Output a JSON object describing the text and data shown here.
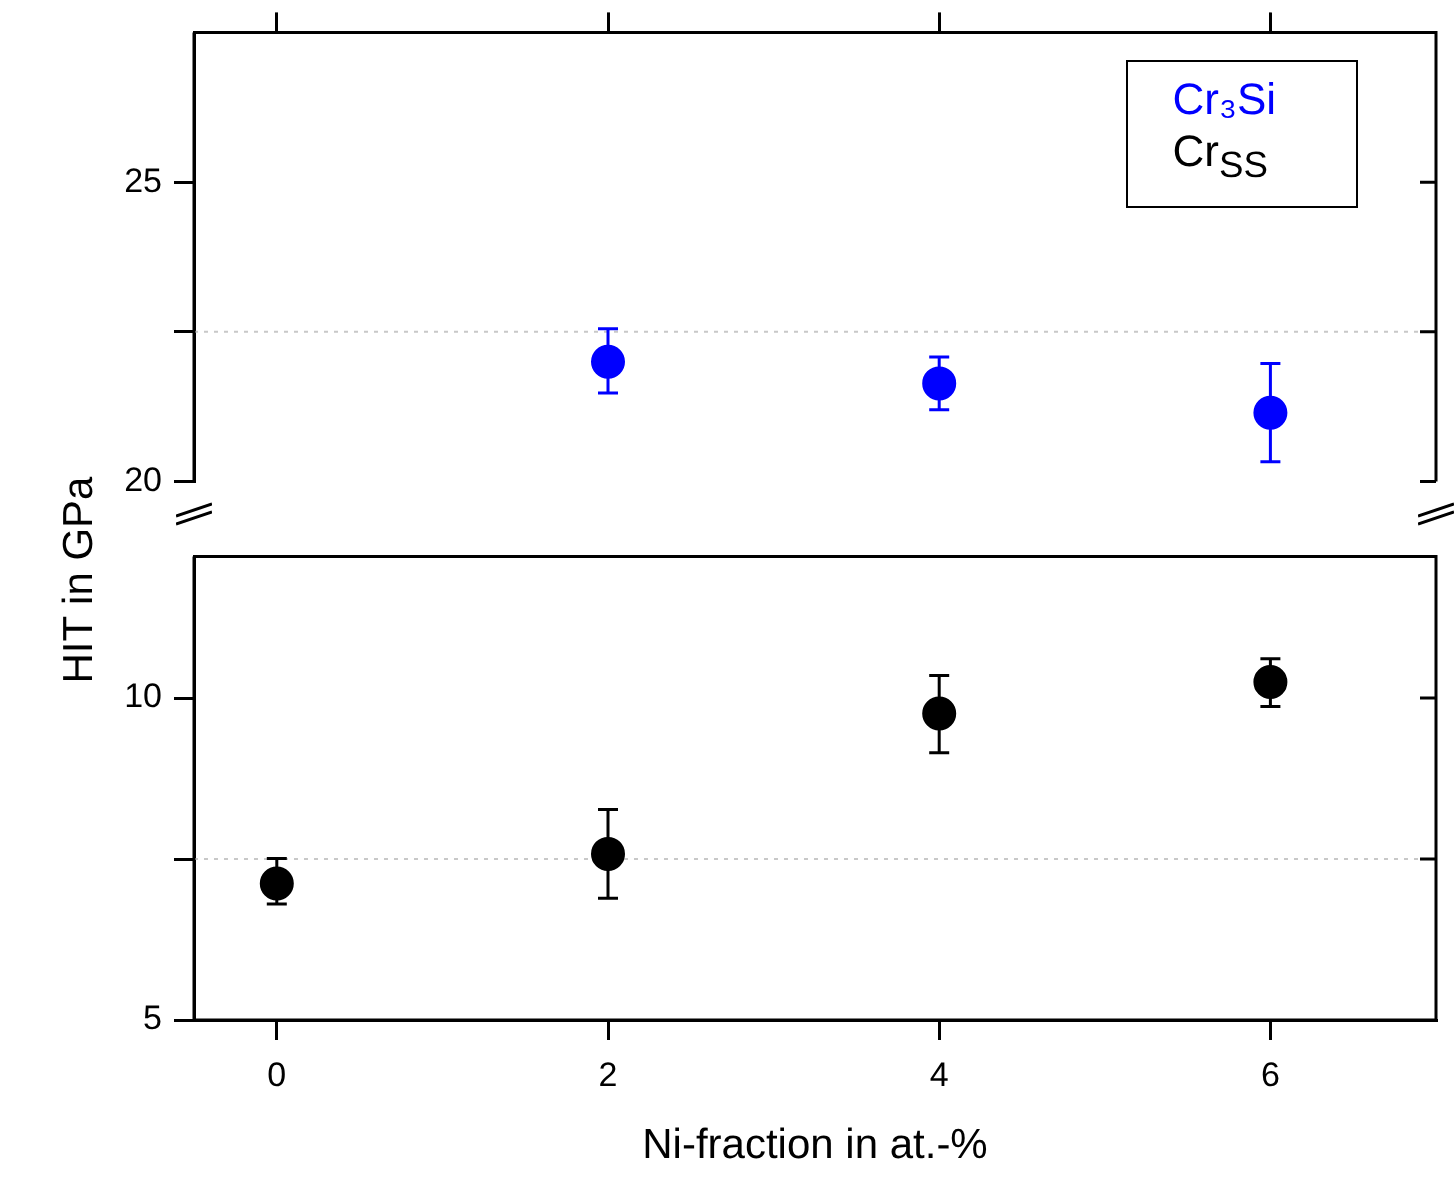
{
  "chart_data": [
    {
      "type": "scatter",
      "xlim": [
        -0.5,
        7
      ],
      "xticks": [
        0,
        2,
        4,
        6
      ],
      "ylim": [
        20,
        27.5
      ],
      "yticks": [
        20,
        {
          "value": 22.5,
          "label": null
        },
        25
      ],
      "tick_labels": "y",
      "marker": "circle",
      "legend": "top right",
      "series": [
        {
          "name": "Cr₃Si",
          "color": "#0000ff",
          "x": [
            2,
            4,
            6
          ],
          "values": [
            22.0,
            21.64,
            21.15
          ],
          "errors": [
            [
              21.48,
              22.55
            ],
            [
              21.2,
              22.08
            ],
            [
              20.33,
              21.97
            ]
          ]
        }
      ],
      "ref_lines": [
        {
          "axis": "y",
          "value": 22.5,
          "color": "#c8c8c8",
          "line_style": "dotted"
        }
      ]
    },
    {
      "type": "scatter",
      "xlabel": "Ni-fraction in at.-%",
      "ylabel": "HIT in GPa",
      "xlim": [
        -0.5,
        7
      ],
      "xticks": [
        0,
        2,
        4,
        6
      ],
      "ylim": [
        5,
        12.2
      ],
      "yticks": [
        5,
        {
          "value": 7.5,
          "label": null
        },
        10
      ],
      "marker": "circle",
      "series": [
        {
          "name": "Cr$_{SS}$",
          "color": "#000000",
          "x": [
            0,
            2,
            4,
            6
          ],
          "values": [
            7.12,
            7.58,
            9.76,
            10.25
          ],
          "errors": [
            [
              6.8,
              7.51
            ],
            [
              6.89,
              8.27
            ],
            [
              9.15,
              10.35
            ],
            [
              9.87,
              10.61
            ]
          ]
        }
      ],
      "ref_lines": [
        {
          "axis": "y",
          "value": 7.5,
          "color": "#c8c8c8",
          "line_style": "dotted"
        }
      ]
    }
  ]
}
